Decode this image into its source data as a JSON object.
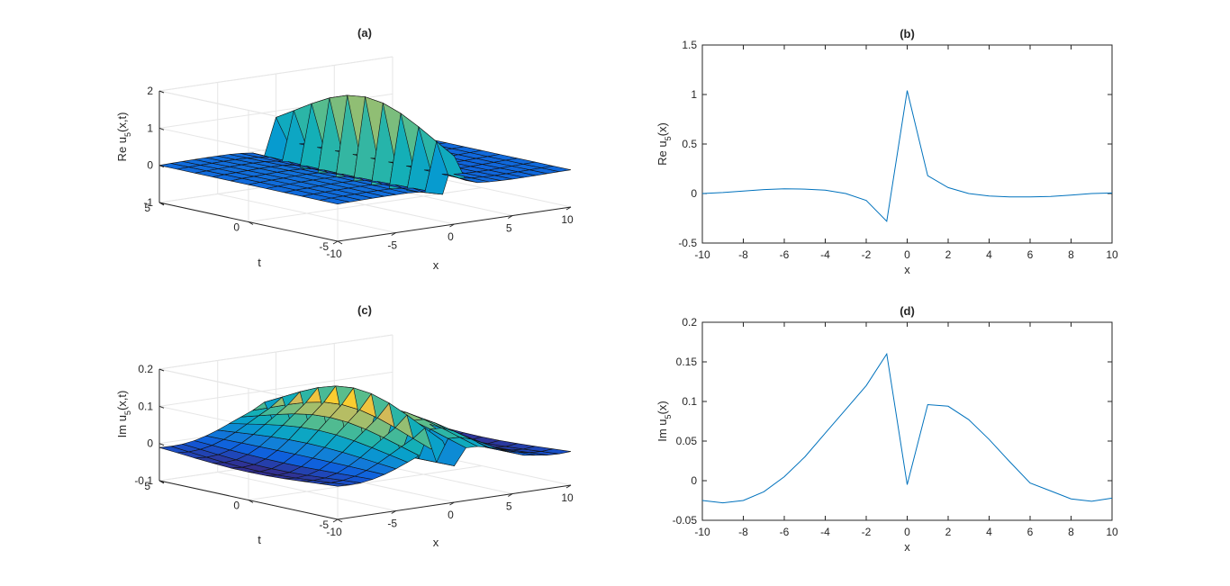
{
  "chart_data": [
    {
      "type": "surface",
      "title": "(a)",
      "xlabel": "x",
      "ylabel": "t",
      "zlabel_prefix": "Re u",
      "zlabel_sub": "5",
      "zlabel_suffix": "(x,t)",
      "xticks": [
        "-10",
        "-5",
        "0",
        "5",
        "10"
      ],
      "yticks": [
        "-5",
        "0",
        "5"
      ],
      "zticks": [
        "-1",
        "0",
        "1",
        "2"
      ],
      "xlim": [
        -10,
        10
      ],
      "ylim": [
        -5,
        5
      ],
      "zlim": [
        -1,
        2
      ],
      "colormap": "parula",
      "x": [
        -10,
        -9,
        -8,
        -7,
        -6,
        -5,
        -4,
        -3,
        -2,
        -1,
        0,
        1,
        2,
        3,
        4,
        5,
        6,
        7,
        8,
        9,
        10
      ],
      "t": [
        -5,
        -4,
        -3,
        -2,
        -1,
        0,
        1,
        2,
        3,
        4,
        5
      ],
      "z_profile_at_t0": [
        0.0,
        0.02,
        0.03,
        0.04,
        0.05,
        0.05,
        0.04,
        0.0,
        -0.08,
        -0.35,
        1.9,
        0.3,
        0.06,
        0.0,
        -0.03,
        -0.04,
        -0.04,
        -0.03,
        -0.02,
        -0.01,
        0.0
      ]
    },
    {
      "type": "line",
      "title": "(b)",
      "xlabel": "x",
      "ylabel_prefix": "Re u",
      "ylabel_sub": "5",
      "ylabel_suffix": "(x)",
      "xlim": [
        -10,
        10
      ],
      "ylim": [
        -0.5,
        1.5
      ],
      "xticks": [
        "-10",
        "-8",
        "-6",
        "-4",
        "-2",
        "0",
        "2",
        "4",
        "6",
        "8",
        "10"
      ],
      "yticks": [
        "-0.5",
        "0",
        "0.5",
        "1",
        "1.5"
      ],
      "x": [
        -10,
        -9,
        -8,
        -7,
        -6,
        -5,
        -4,
        -3,
        -2,
        -1,
        0,
        1,
        2,
        3,
        4,
        5,
        6,
        7,
        8,
        9,
        10
      ],
      "y": [
        0.0,
        0.01,
        0.025,
        0.04,
        0.048,
        0.045,
        0.035,
        0.0,
        -0.07,
        -0.28,
        1.04,
        0.18,
        0.06,
        0.0,
        -0.025,
        -0.035,
        -0.035,
        -0.03,
        -0.015,
        0.0,
        0.005
      ]
    },
    {
      "type": "surface",
      "title": "(c)",
      "xlabel": "x",
      "ylabel": "t",
      "zlabel_prefix": "Im u",
      "zlabel_sub": "5",
      "zlabel_suffix": "(x,t)",
      "xticks": [
        "-10",
        "-5",
        "0",
        "5",
        "10"
      ],
      "yticks": [
        "-5",
        "0",
        "5"
      ],
      "zticks": [
        "-0.1",
        "0",
        "0.1",
        "0.2"
      ],
      "xlim": [
        -10,
        10
      ],
      "ylim": [
        -5,
        5
      ],
      "zlim": [
        -0.1,
        0.2
      ],
      "colormap": "parula",
      "x": [
        -10,
        -9,
        -8,
        -7,
        -6,
        -5,
        -4,
        -3,
        -2,
        -1,
        0,
        1,
        2,
        3,
        4,
        5,
        6,
        7,
        8,
        9,
        10
      ],
      "t": [
        -5,
        -4,
        -3,
        -2,
        -1,
        0,
        1,
        2,
        3,
        4,
        5
      ],
      "z_profile_at_t0": [
        -0.025,
        -0.028,
        -0.025,
        -0.014,
        0.005,
        0.03,
        0.06,
        0.09,
        0.12,
        0.16,
        -0.005,
        0.096,
        0.094,
        0.077,
        0.052,
        0.024,
        -0.003,
        -0.013,
        -0.023,
        -0.026,
        -0.022
      ]
    },
    {
      "type": "line",
      "title": "(d)",
      "xlabel": "x",
      "ylabel_prefix": "Im u",
      "ylabel_sub": "5",
      "ylabel_suffix": "(x)",
      "xlim": [
        -10,
        10
      ],
      "ylim": [
        -0.05,
        0.2
      ],
      "xticks": [
        "-10",
        "-8",
        "-6",
        "-4",
        "-2",
        "0",
        "2",
        "4",
        "6",
        "8",
        "10"
      ],
      "yticks": [
        "-0.05",
        "0",
        "0.05",
        "0.1",
        "0.15",
        "0.2"
      ],
      "x": [
        -10,
        -9,
        -8,
        -7,
        -6,
        -5,
        -4,
        -3,
        -2,
        -1,
        0,
        1,
        2,
        3,
        4,
        5,
        6,
        7,
        8,
        9,
        10
      ],
      "y": [
        -0.025,
        -0.028,
        -0.025,
        -0.014,
        0.005,
        0.03,
        0.06,
        0.09,
        0.12,
        0.16,
        -0.005,
        0.096,
        0.094,
        0.077,
        0.052,
        0.024,
        -0.003,
        -0.013,
        -0.023,
        -0.026,
        -0.022
      ]
    }
  ]
}
